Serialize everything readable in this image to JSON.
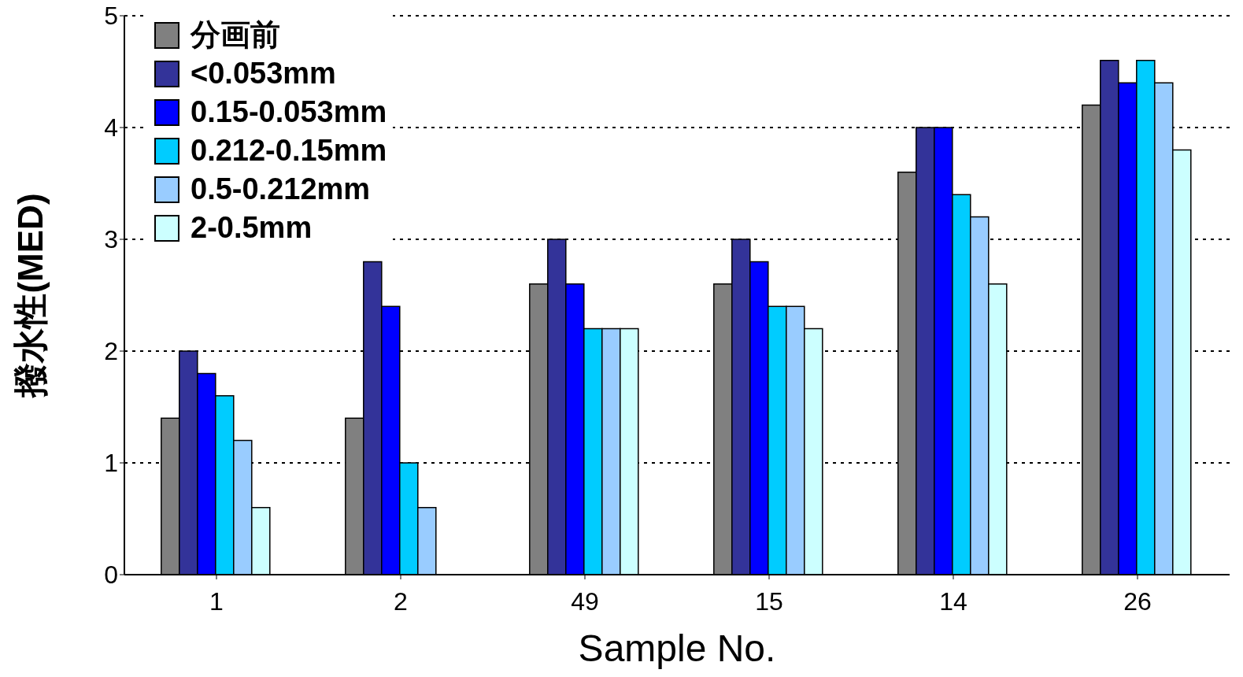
{
  "chart_data": {
    "type": "bar",
    "xlabel": "Sample No.",
    "ylabel": "撥水性(MED)",
    "categories": [
      "1",
      "2",
      "49",
      "15",
      "14",
      "26"
    ],
    "series": [
      {
        "name": "分画前",
        "color": "#808080",
        "values": [
          1.4,
          1.4,
          2.6,
          2.6,
          3.6,
          4.2
        ]
      },
      {
        "name": "<0.053mm",
        "color": "#333399",
        "values": [
          2.0,
          2.8,
          3.0,
          3.0,
          4.0,
          4.6
        ]
      },
      {
        "name": "0.15-0.053mm",
        "color": "#0000ff",
        "values": [
          1.8,
          2.4,
          2.6,
          2.8,
          4.0,
          4.4
        ]
      },
      {
        "name": "0.212-0.15mm",
        "color": "#00ccff",
        "values": [
          1.6,
          1.0,
          2.2,
          2.4,
          3.4,
          4.6
        ]
      },
      {
        "name": "0.5-0.212mm",
        "color": "#99ccff",
        "values": [
          1.2,
          0.6,
          2.2,
          2.4,
          3.2,
          4.4
        ]
      },
      {
        "name": "2-0.5mm",
        "color": "#ccffff",
        "values": [
          0.6,
          null,
          2.2,
          2.2,
          2.6,
          3.8
        ]
      }
    ],
    "ylim": [
      0,
      5
    ],
    "yticks": [
      0,
      1,
      2,
      3,
      4,
      5
    ],
    "grid": "y",
    "legend": "top left"
  }
}
